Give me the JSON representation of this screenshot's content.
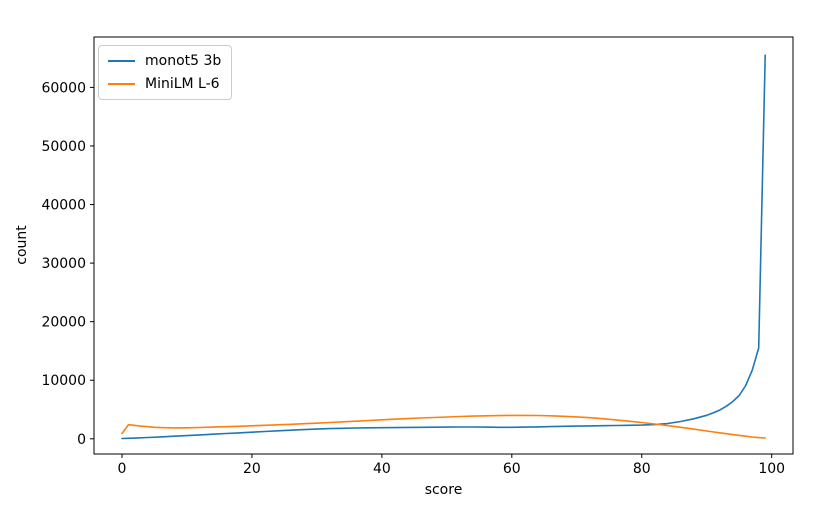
{
  "chart_data": {
    "type": "line",
    "title": "",
    "xlabel": "score",
    "ylabel": "count",
    "xlim": [
      -4.31,
      103.28
    ],
    "ylim": [
      -2595,
      68605
    ],
    "xticks": [
      0,
      20,
      40,
      60,
      80,
      100
    ],
    "yticks": [
      0,
      10000,
      20000,
      30000,
      40000,
      50000,
      60000
    ],
    "grid": false,
    "legend_position": "upper left",
    "background_color": "#ffffff",
    "axes_color": "#000000",
    "series": [
      {
        "name": "monot5 3b",
        "color": "#1f77b4",
        "points": [
          [
            0,
            50
          ],
          [
            2,
            120
          ],
          [
            4,
            220
          ],
          [
            6,
            330
          ],
          [
            8,
            440
          ],
          [
            10,
            550
          ],
          [
            12,
            670
          ],
          [
            14,
            790
          ],
          [
            16,
            900
          ],
          [
            18,
            1010
          ],
          [
            20,
            1130
          ],
          [
            22,
            1250
          ],
          [
            24,
            1360
          ],
          [
            26,
            1470
          ],
          [
            28,
            1570
          ],
          [
            30,
            1660
          ],
          [
            32,
            1740
          ],
          [
            34,
            1800
          ],
          [
            36,
            1840
          ],
          [
            38,
            1870
          ],
          [
            40,
            1890
          ],
          [
            42,
            1920
          ],
          [
            44,
            1940
          ],
          [
            46,
            1960
          ],
          [
            48,
            1980
          ],
          [
            50,
            2000
          ],
          [
            52,
            2010
          ],
          [
            54,
            2010
          ],
          [
            56,
            1990
          ],
          [
            58,
            1970
          ],
          [
            60,
            1960
          ],
          [
            62,
            1990
          ],
          [
            64,
            2030
          ],
          [
            66,
            2080
          ],
          [
            68,
            2130
          ],
          [
            70,
            2170
          ],
          [
            72,
            2210
          ],
          [
            74,
            2240
          ],
          [
            76,
            2270
          ],
          [
            78,
            2300
          ],
          [
            80,
            2340
          ],
          [
            82,
            2430
          ],
          [
            84,
            2620
          ],
          [
            86,
            2960
          ],
          [
            88,
            3420
          ],
          [
            90,
            4020
          ],
          [
            91,
            4420
          ],
          [
            92,
            4900
          ],
          [
            93,
            5550
          ],
          [
            94,
            6350
          ],
          [
            95,
            7400
          ],
          [
            96,
            9100
          ],
          [
            97,
            11700
          ],
          [
            98,
            15500
          ],
          [
            99,
            65500
          ]
        ]
      },
      {
        "name": "MiniLM L-6",
        "color": "#ff7f0e",
        "points": [
          [
            0,
            900
          ],
          [
            1,
            2400
          ],
          [
            2,
            2290
          ],
          [
            3,
            2160
          ],
          [
            4,
            2060
          ],
          [
            5,
            1970
          ],
          [
            6,
            1910
          ],
          [
            8,
            1860
          ],
          [
            10,
            1880
          ],
          [
            12,
            1930
          ],
          [
            14,
            1990
          ],
          [
            16,
            2060
          ],
          [
            18,
            2140
          ],
          [
            20,
            2220
          ],
          [
            22,
            2300
          ],
          [
            24,
            2390
          ],
          [
            26,
            2480
          ],
          [
            28,
            2570
          ],
          [
            30,
            2670
          ],
          [
            32,
            2780
          ],
          [
            34,
            2900
          ],
          [
            36,
            3010
          ],
          [
            38,
            3130
          ],
          [
            40,
            3240
          ],
          [
            42,
            3350
          ],
          [
            44,
            3450
          ],
          [
            46,
            3550
          ],
          [
            48,
            3640
          ],
          [
            50,
            3720
          ],
          [
            52,
            3800
          ],
          [
            54,
            3870
          ],
          [
            56,
            3930
          ],
          [
            58,
            3970
          ],
          [
            60,
            3990
          ],
          [
            62,
            4000
          ],
          [
            64,
            3980
          ],
          [
            66,
            3930
          ],
          [
            68,
            3850
          ],
          [
            70,
            3740
          ],
          [
            72,
            3600
          ],
          [
            74,
            3430
          ],
          [
            76,
            3230
          ],
          [
            78,
            3010
          ],
          [
            80,
            2780
          ],
          [
            82,
            2530
          ],
          [
            84,
            2260
          ],
          [
            86,
            1970
          ],
          [
            88,
            1660
          ],
          [
            90,
            1340
          ],
          [
            92,
            1020
          ],
          [
            94,
            720
          ],
          [
            96,
            440
          ],
          [
            97,
            310
          ],
          [
            98,
            200
          ],
          [
            99,
            130
          ]
        ]
      }
    ]
  }
}
